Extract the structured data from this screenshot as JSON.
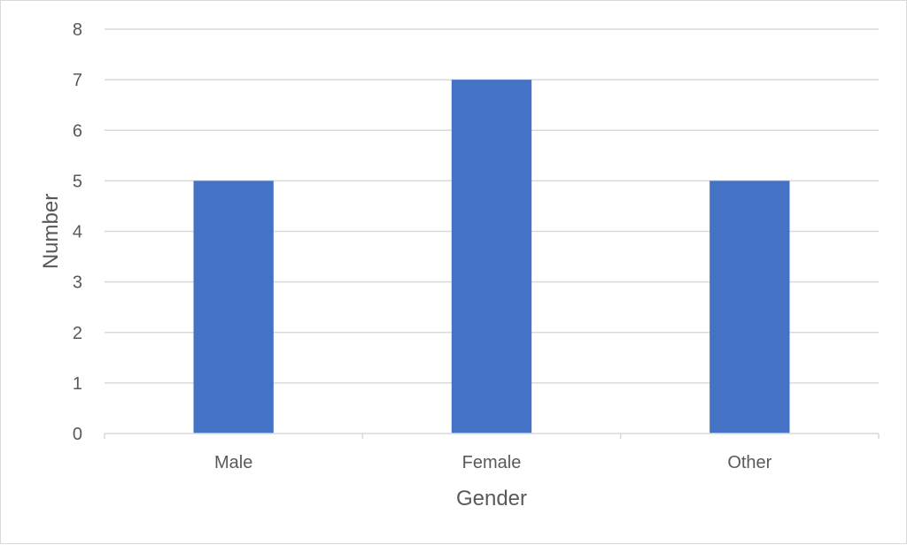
{
  "chart_data": {
    "type": "bar",
    "title": "",
    "categories": [
      "Male",
      "Female",
      "Other"
    ],
    "series": [
      {
        "values": [
          5,
          7,
          5
        ]
      }
    ],
    "xlabel": "Gender",
    "ylabel": "Number",
    "ylim": [
      0,
      8
    ],
    "yticks": [
      "0",
      "1",
      "2",
      "3",
      "4",
      "5",
      "6",
      "7",
      "8"
    ],
    "grid": true,
    "legend": "none",
    "colors": {
      "bar": "#4472C4",
      "grid": "#d9d9d9",
      "axis": "#d9d9d9",
      "text": "#595959"
    }
  }
}
